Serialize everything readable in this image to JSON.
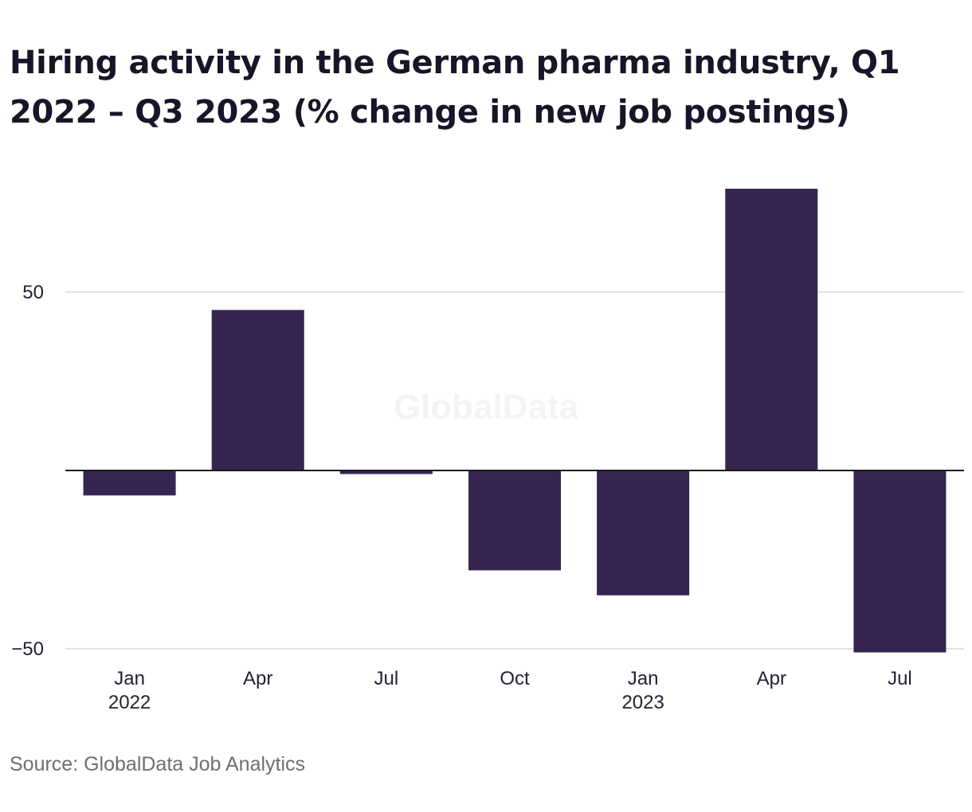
{
  "title": "Hiring activity in the German pharma industry, Q1 2022 – Q3 2023 (% change in new job postings)",
  "watermark": "GlobalData",
  "source": "Source: GlobalData Job Analytics",
  "colors": {
    "bar": "#362551",
    "grid": "#d9d9d9",
    "zero_line": "#1a1a1a",
    "text": "#222233",
    "source": "#6e6e73"
  },
  "chart_data": {
    "type": "bar",
    "categories": [
      "Jan 2022",
      "Apr 2022",
      "Jul 2022",
      "Oct 2022",
      "Jan 2023",
      "Apr 2023",
      "Jul 2023"
    ],
    "x_tick_labels": [
      {
        "label": "Jan",
        "year": "2022"
      },
      {
        "label": "Apr",
        "year": ""
      },
      {
        "label": "Jul",
        "year": ""
      },
      {
        "label": "Oct",
        "year": ""
      },
      {
        "label": "Jan",
        "year": "2023"
      },
      {
        "label": "Apr",
        "year": ""
      },
      {
        "label": "Jul",
        "year": ""
      }
    ],
    "values": [
      -7,
      45,
      -1,
      -28,
      -35,
      79,
      -51
    ],
    "y_ticks": [
      {
        "value": 50,
        "label": "50"
      },
      {
        "value": -50,
        "label": "−50"
      }
    ],
    "ylim": [
      -51,
      85
    ],
    "grid": true,
    "legend": "none",
    "xlabel": "",
    "ylabel": ""
  }
}
